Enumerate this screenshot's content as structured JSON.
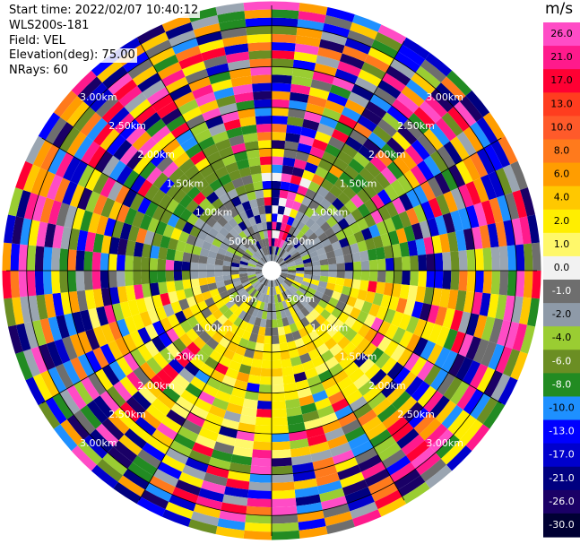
{
  "info": {
    "start_time": "Start time: 2022/02/07 10:40:12",
    "instrument": "WLS200s-181",
    "field": "Field: VEL",
    "elevation": "Elevation(deg): 75.00",
    "nrays": "NRays: 60"
  },
  "chart_data": {
    "type": "heatmap",
    "projection": "polar (PPI)",
    "field": "VEL",
    "units": "m/s",
    "n_rays": 60,
    "range_rings": [
      {
        "label": "500m",
        "range_m": 500
      },
      {
        "label": "1.00km",
        "range_m": 1000
      },
      {
        "label": "1.50km",
        "range_m": 1500
      },
      {
        "label": "2.00km",
        "range_m": 2000
      },
      {
        "label": "2.50km",
        "range_m": 2500
      },
      {
        "label": "3.00km",
        "range_m": 3000
      }
    ],
    "max_range_m": 3250,
    "blind_radius_m": 120,
    "gate_spacing_m": 100,
    "colorbar": {
      "label": "m/s",
      "ticks": [
        "26.0",
        "21.0",
        "17.0",
        "13.0",
        "10.0",
        "8.0",
        "6.0",
        "4.0",
        "2.0",
        "1.0",
        "0.0",
        "-1.0",
        "-2.0",
        "-4.0",
        "-6.0",
        "-8.0",
        "-10.0",
        "-13.0",
        "-17.0",
        "-21.0",
        "-26.0",
        "-30.0"
      ],
      "colors": [
        "#ff4cc6",
        "#ff1a8c",
        "#ff0033",
        "#ff3d1f",
        "#ff5a2a",
        "#ff7a1c",
        "#ff9d00",
        "#ffc800",
        "#ffee00",
        "#fff86a",
        "#f2f2f2",
        "#6e6e6e",
        "#8e9aa8",
        "#9acd32",
        "#6b8e23",
        "#228b22",
        "#1e90ff",
        "#0000ff",
        "#0000cd",
        "#000080",
        "#1a0066",
        "#000033"
      ]
    },
    "pattern": "Near-field (<=1.2 km) mostly near-zero velocity (greys) with southern sector positive (yellow) and a narrow northern jet; mid ranges olive/green to the north and yellow to the south; beyond ~1.8 km noisy multicolored returns."
  }
}
